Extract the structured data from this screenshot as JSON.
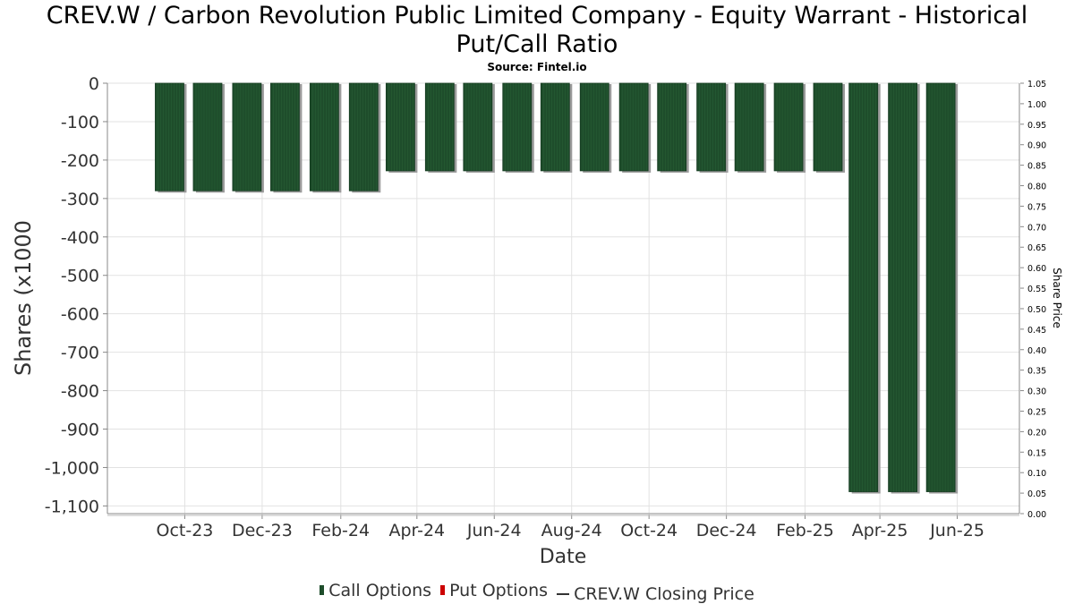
{
  "title_line1": "CREV.W / Carbon Revolution Public Limited Company - Equity Warrant - Historical",
  "title_line2": "Put/Call Ratio",
  "source": "Source: Fintel.io",
  "chart_data": {
    "type": "bar",
    "title": "CREV.W / Carbon Revolution Public Limited Company - Equity Warrant - Historical Put/Call Ratio",
    "subtitle": "Source: Fintel.io",
    "xlabel": "Date",
    "ylabel": "Shares (x1000",
    "y2label": "Share Price",
    "ylim": [
      -1120,
      0
    ],
    "y2lim": [
      0,
      1.05
    ],
    "y_ticks": [
      "0",
      "-100",
      "-200",
      "-300",
      "-400",
      "-500",
      "-600",
      "-700",
      "-800",
      "-900",
      "-1,000",
      "-1,100"
    ],
    "y2_ticks": [
      "0.00",
      "0.05",
      "0.10",
      "0.15",
      "0.20",
      "0.25",
      "0.30",
      "0.35",
      "0.40",
      "0.45",
      "0.50",
      "0.55",
      "0.60",
      "0.65",
      "0.70",
      "0.75",
      "0.80",
      "0.85",
      "0.90",
      "0.95",
      "1.00",
      "1.05"
    ],
    "x_ticks": [
      "Oct-23",
      "Dec-23",
      "Feb-24",
      "Apr-24",
      "Jun-24",
      "Aug-24",
      "Oct-24",
      "Dec-24",
      "Feb-25",
      "Apr-25",
      "Jun-25"
    ],
    "x_tick_dates": [
      "2023-10-01",
      "2023-12-01",
      "2024-02-01",
      "2024-04-01",
      "2024-06-01",
      "2024-08-01",
      "2024-10-01",
      "2024-12-01",
      "2025-02-01",
      "2025-04-01",
      "2025-06-01"
    ],
    "x_range": [
      "2023-08-01",
      "2025-07-20"
    ],
    "grid": true,
    "legend_position": "bottom",
    "series": [
      {
        "name": "Call Options",
        "color": "#1e4d2b",
        "dates": [
          "2023-09-19",
          "2023-10-19",
          "2023-11-19",
          "2023-12-19",
          "2024-01-19",
          "2024-02-19",
          "2024-03-19",
          "2024-04-19",
          "2024-05-19",
          "2024-06-19",
          "2024-07-19",
          "2024-08-19",
          "2024-09-19",
          "2024-10-19",
          "2024-11-19",
          "2024-12-19",
          "2025-01-19",
          "2025-02-19",
          "2025-03-19",
          "2025-04-19",
          "2025-05-19"
        ],
        "values": [
          -280,
          -280,
          -280,
          -280,
          -280,
          -280,
          -228,
          -228,
          -228,
          -228,
          -228,
          -228,
          -228,
          -228,
          -228,
          -228,
          -228,
          -228,
          -1063,
          -1063,
          -1063
        ]
      },
      {
        "name": "Put Options",
        "color": "#cc0000",
        "dates": [],
        "values": []
      },
      {
        "name": "CREV.W Closing Price",
        "color": "#333333",
        "dates": [],
        "values": []
      }
    ]
  }
}
